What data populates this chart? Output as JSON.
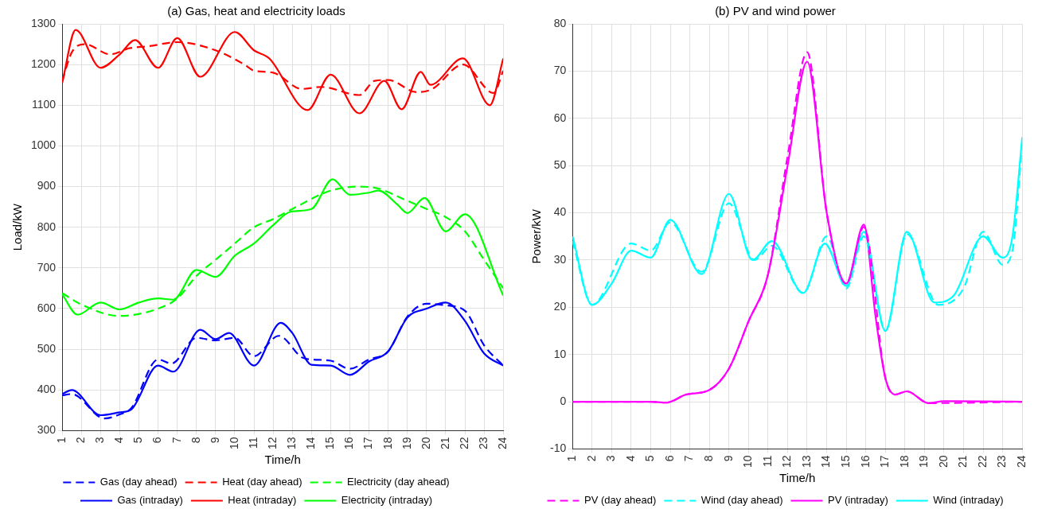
{
  "chart_data": [
    {
      "type": "line",
      "title": "(a) Gas, heat and electricity loads",
      "xlabel": "Time/h",
      "ylabel": "Load/kW",
      "xlim": [
        1,
        24
      ],
      "xticks": [
        1,
        2,
        3,
        4,
        5,
        6,
        7,
        8,
        9,
        10,
        11,
        12,
        13,
        14,
        15,
        16,
        17,
        18,
        19,
        20,
        21,
        22,
        23,
        24
      ],
      "ylim": [
        300,
        1300
      ],
      "yticks": [
        300,
        400,
        500,
        600,
        700,
        800,
        900,
        1000,
        1100,
        1200,
        1300
      ],
      "grid": true,
      "legend": "bottom",
      "marker": "none",
      "series": [
        {
          "name": "Gas (day ahead)",
          "color": "#0000ff",
          "line_style": "dashed",
          "x": [
            1,
            1.5,
            3.2,
            4,
            4.6,
            6,
            6.7,
            8,
            9,
            10,
            11,
            12.3,
            13.5,
            14,
            15,
            16,
            17,
            18,
            19,
            20,
            21,
            22,
            23,
            24
          ],
          "values": [
            387,
            390,
            330,
            340,
            355,
            475,
            465,
            528,
            522,
            528,
            483,
            533,
            480,
            475,
            472,
            452,
            475,
            495,
            580,
            612,
            608,
            595,
            510,
            460
          ]
        },
        {
          "name": "Heat (day ahead)",
          "color": "#ff0000",
          "line_style": "dashed",
          "x": [
            1,
            1.5,
            2.2,
            3.5,
            4.5,
            5.5,
            7,
            9,
            10.5,
            11,
            12,
            13.5,
            14.5,
            16.5,
            17.3,
            18,
            19.5,
            20.3,
            21.9,
            23.5,
            24
          ],
          "values": [
            1160,
            1230,
            1250,
            1225,
            1240,
            1245,
            1255,
            1235,
            1200,
            1185,
            1180,
            1140,
            1145,
            1125,
            1160,
            1162,
            1132,
            1140,
            1200,
            1130,
            1185
          ]
        },
        {
          "name": "Electricity (day ahead)",
          "color": "#00ff00",
          "line_style": "dashed",
          "x": [
            1,
            2,
            4,
            6,
            7,
            8,
            9,
            10,
            11,
            12,
            13,
            15,
            16.5,
            17.5,
            19,
            20,
            21,
            22,
            23,
            24
          ],
          "values": [
            638,
            610,
            582,
            600,
            625,
            680,
            720,
            760,
            800,
            820,
            845,
            890,
            900,
            895,
            865,
            845,
            825,
            790,
            720,
            650
          ]
        },
        {
          "name": "Gas (intraday)",
          "color": "#0000ff",
          "line_style": "solid",
          "x": [
            1,
            1.5,
            3,
            4,
            4.6,
            6,
            6.8,
            8.2,
            9,
            9.7,
            11,
            12.4,
            13,
            14,
            15,
            16,
            17,
            18,
            19,
            20,
            21,
            22,
            23,
            24
          ],
          "values": [
            390,
            400,
            338,
            345,
            352,
            460,
            445,
            548,
            525,
            540,
            460,
            565,
            540,
            462,
            460,
            437,
            470,
            495,
            578,
            600,
            615,
            570,
            490,
            460
          ]
        },
        {
          "name": "Heat (intraday)",
          "color": "#ff0000",
          "line_style": "solid",
          "x": [
            1,
            1.7,
            3,
            4,
            4.8,
            6,
            7,
            8.2,
            10,
            11,
            11.8,
            13.8,
            15,
            16.5,
            17.8,
            18.7,
            19.7,
            20.2,
            21.9,
            23.3,
            24
          ],
          "values": [
            1155,
            1285,
            1192,
            1225,
            1260,
            1192,
            1265,
            1170,
            1280,
            1235,
            1215,
            1088,
            1175,
            1080,
            1160,
            1090,
            1182,
            1150,
            1215,
            1100,
            1215
          ]
        },
        {
          "name": "Electricity (intraday)",
          "color": "#00ff00",
          "line_style": "solid",
          "x": [
            1,
            1.8,
            3,
            4,
            5,
            6,
            6.8,
            8,
            9,
            10,
            11,
            12,
            12.9,
            14,
            15.1,
            16,
            17,
            17.5,
            18.5,
            19,
            19.9,
            21,
            22,
            24
          ],
          "values": [
            635,
            585,
            615,
            598,
            615,
            625,
            622,
            695,
            678,
            730,
            760,
            805,
            838,
            845,
            918,
            880,
            885,
            890,
            855,
            835,
            872,
            790,
            832,
            632
          ]
        }
      ]
    },
    {
      "type": "line",
      "title": "(b) PV and wind power",
      "xlabel": "Time/h",
      "ylabel": "Power/kW",
      "xlim": [
        1,
        24
      ],
      "xticks": [
        1,
        2,
        3,
        4,
        5,
        6,
        7,
        8,
        9,
        10,
        11,
        12,
        13,
        14,
        15,
        16,
        17,
        18,
        19,
        20,
        21,
        22,
        23,
        24
      ],
      "ylim": [
        -10,
        80
      ],
      "yticks": [
        -10,
        0,
        10,
        20,
        30,
        40,
        50,
        60,
        70,
        80
      ],
      "grid": true,
      "legend": "bottom",
      "marker": "none",
      "series": [
        {
          "name": "PV (day ahead)",
          "color": "#ff00ff",
          "line_style": "dashed",
          "x": [
            1,
            5,
            5.8,
            6.8,
            8,
            9,
            10,
            11,
            12,
            13,
            14,
            15,
            15.9,
            17,
            17.5,
            18.1,
            19.2,
            24
          ],
          "values": [
            0,
            0,
            -0.2,
            1.5,
            2.5,
            7,
            17,
            27,
            52,
            74,
            40,
            25,
            37,
            5,
            1.5,
            2.2,
            -0.3,
            0
          ]
        },
        {
          "name": "Wind (day ahead)",
          "color": "#00ffff",
          "line_style": "dashed",
          "x": [
            1,
            2,
            4,
            5,
            6,
            7.6,
            9,
            10.3,
            11.2,
            12.8,
            14,
            15,
            15.9,
            17,
            18.1,
            19.7,
            21,
            22,
            23,
            23.5,
            24
          ],
          "values": [
            34,
            20.5,
            33.5,
            32,
            38,
            27.5,
            42,
            30,
            33,
            23,
            35,
            24,
            35,
            15,
            35.5,
            20.5,
            24,
            36,
            29,
            32,
            55
          ]
        },
        {
          "name": "PV (intraday)",
          "color": "#ff00ff",
          "line_style": "solid",
          "x": [
            1,
            5,
            5.8,
            6.8,
            8,
            9,
            10,
            11,
            12,
            13,
            14,
            15,
            15.9,
            16.5,
            17,
            17.5,
            18.1,
            19.2,
            20,
            24
          ],
          "values": [
            0,
            0,
            -0.2,
            1.5,
            2.5,
            7,
            17,
            27,
            50,
            72,
            40,
            25,
            37.5,
            18,
            5,
            1.5,
            2.2,
            -0.3,
            0.1,
            0
          ]
        },
        {
          "name": "Wind (intraday)",
          "color": "#00ffff",
          "line_style": "solid",
          "x": [
            1,
            2,
            3,
            4,
            5,
            6,
            7.6,
            9,
            10.2,
            11.2,
            12.8,
            13.9,
            15,
            15.9,
            17,
            18.1,
            19.5,
            20.5,
            22,
            23,
            23.5,
            24
          ],
          "values": [
            35,
            20.5,
            25,
            32,
            30.5,
            38.5,
            27,
            44,
            30,
            34,
            23,
            33.5,
            24.5,
            36,
            15,
            36,
            21,
            22.5,
            35,
            30.5,
            35,
            56
          ]
        }
      ]
    }
  ]
}
